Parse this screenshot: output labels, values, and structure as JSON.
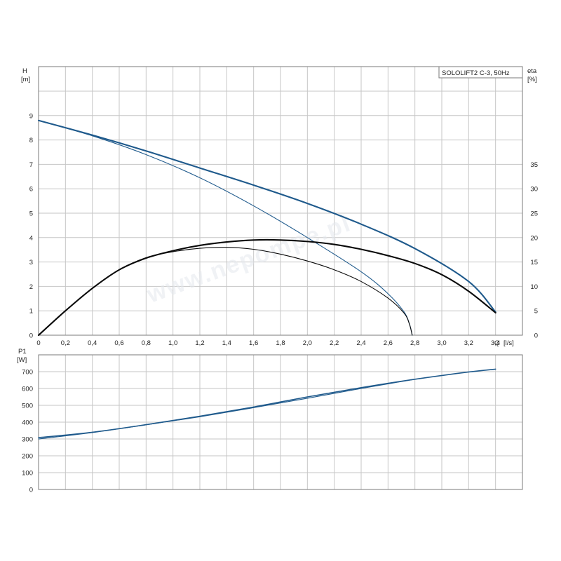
{
  "watermark": "www.nepompe.pl",
  "colors": {
    "head": "#1f5a8c",
    "efficiency": "#0a0a0a",
    "power": "#1f5a8c",
    "grid": "#c6c6c6",
    "frame": "#7a7a7a"
  },
  "chart_data": [
    {
      "type": "line",
      "title": "SOLOLIFT2 C-3, 50Hz",
      "xlabel": "Q [l/s]",
      "ylabel": "H [m]",
      "y2label": "eta [%]",
      "xlabel_parts": [
        "Q",
        "[l/s]"
      ],
      "ylabel_parts": [
        "H",
        "[m]"
      ],
      "y2label_parts": [
        "eta",
        "[%]"
      ],
      "xlim": [
        0,
        3.6
      ],
      "ylim": [
        0,
        10
      ],
      "y2lim": [
        0,
        50
      ],
      "xticks": [
        "0",
        "0,2",
        "0,4",
        "0,6",
        "0,8",
        "1,0",
        "1,2",
        "1,4",
        "1,6",
        "1,8",
        "2,0",
        "2,2",
        "2,4",
        "2,6",
        "2,8",
        "3,0",
        "3,2",
        "3,4"
      ],
      "yticks": [
        "0",
        "1",
        "2",
        "3",
        "4",
        "5",
        "6",
        "7",
        "8",
        "9"
      ],
      "y2ticks": [
        "0",
        "5",
        "10",
        "15",
        "20",
        "25",
        "30",
        "35"
      ],
      "grid": true,
      "series": [
        {
          "axis": "left",
          "kind": "head",
          "x": [
            0,
            0.4,
            0.8,
            1.2,
            1.6,
            2.0,
            2.4,
            2.8,
            3.2,
            3.4
          ],
          "y": [
            8.8,
            8.2,
            7.55,
            6.85,
            6.15,
            5.4,
            4.55,
            3.55,
            2.2,
            0.95
          ]
        },
        {
          "axis": "left",
          "kind": "head",
          "x": [
            0,
            0.4,
            0.8,
            1.2,
            1.6,
            2.0,
            2.4,
            2.6,
            2.72,
            2.76,
            2.78
          ],
          "y": [
            8.8,
            8.17,
            7.4,
            6.45,
            5.3,
            4.0,
            2.6,
            1.7,
            0.95,
            0.45,
            0
          ]
        },
        {
          "axis": "right",
          "kind": "efficiency",
          "x": [
            0,
            0.2,
            0.4,
            0.6,
            0.8,
            1.0,
            1.2,
            1.4,
            1.6,
            1.8,
            2.0,
            2.2,
            2.4,
            2.6,
            2.8,
            3.0,
            3.2,
            3.4
          ],
          "y": [
            0,
            5.0,
            9.6,
            13.4,
            15.8,
            17.3,
            18.4,
            19.1,
            19.5,
            19.5,
            19.2,
            18.6,
            17.6,
            16.3,
            14.7,
            12.4,
            9.0,
            4.6
          ]
        },
        {
          "axis": "right",
          "kind": "efficiency",
          "x": [
            0,
            0.2,
            0.4,
            0.6,
            0.8,
            1.0,
            1.2,
            1.4,
            1.6,
            1.8,
            2.0,
            2.2,
            2.4,
            2.6,
            2.72,
            2.76,
            2.78
          ],
          "y": [
            0,
            5.0,
            9.6,
            13.4,
            15.9,
            17.1,
            17.8,
            18.0,
            17.6,
            16.6,
            15.2,
            13.4,
            11.0,
            7.6,
            4.5,
            2.2,
            0
          ]
        }
      ]
    },
    {
      "type": "line",
      "ylabel": "P1 [W]",
      "ylabel_parts": [
        "P1",
        "[W]"
      ],
      "xlim": [
        0,
        3.6
      ],
      "ylim": [
        0,
        800
      ],
      "yticks": [
        "0",
        "100",
        "200",
        "300",
        "400",
        "500",
        "600",
        "700"
      ],
      "grid": true,
      "series": [
        {
          "axis": "left",
          "kind": "power",
          "x": [
            0,
            0.4,
            0.8,
            1.2,
            1.6,
            2.0,
            2.4,
            2.8,
            3.2,
            3.4
          ],
          "y": [
            308,
            340,
            385,
            435,
            490,
            550,
            605,
            655,
            698,
            715
          ]
        },
        {
          "axis": "left",
          "kind": "power",
          "x": [
            0,
            0.4,
            0.8,
            1.2,
            1.6,
            2.0,
            2.4,
            2.78
          ],
          "y": [
            300,
            338,
            384,
            432,
            486,
            542,
            600,
            652
          ]
        }
      ]
    }
  ]
}
